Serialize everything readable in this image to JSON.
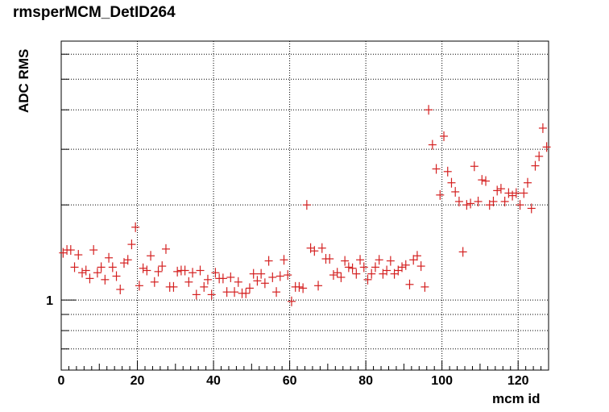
{
  "chart_data": {
    "type": "scatter",
    "title": "rmsperMCM_DetID264",
    "xlabel": "mcm id",
    "ylabel": "ADC RMS",
    "xlim": [
      0,
      128
    ],
    "xticks": [
      0,
      20,
      40,
      60,
      80,
      100,
      120
    ],
    "xtick_labels": [
      "0",
      "20",
      "40",
      "60",
      "80",
      "100",
      "120"
    ],
    "yscale": "log",
    "ylim": [
      0.6,
      6.6
    ],
    "yticks": [
      1
    ],
    "ytick_labels": [
      "1"
    ],
    "grid": true,
    "marker": "cross",
    "marker_color": "#d42020",
    "series": [
      {
        "x": [
          0,
          1,
          2,
          3,
          4,
          5,
          6,
          7,
          8,
          9,
          10,
          11,
          12,
          13,
          14,
          15,
          16,
          17,
          18,
          19,
          20,
          21,
          22,
          23,
          24,
          25,
          26,
          27,
          28,
          29,
          30,
          31,
          32,
          33,
          34,
          35,
          36,
          37,
          38,
          39,
          40,
          41,
          42,
          43,
          44,
          45,
          46,
          47,
          48,
          49,
          50,
          51,
          52,
          53,
          54,
          55,
          56,
          57,
          58,
          59,
          60,
          61,
          62,
          63,
          64,
          65,
          66,
          67,
          68,
          69,
          70,
          71,
          72,
          73,
          74,
          75,
          76,
          77,
          78,
          79,
          80,
          81,
          82,
          83,
          84,
          85,
          86,
          87,
          88,
          89,
          90,
          91,
          92,
          93,
          94,
          95,
          96,
          97,
          98,
          99,
          100,
          101,
          102,
          103,
          104,
          105,
          106,
          107,
          108,
          109,
          110,
          111,
          112,
          113,
          114,
          115,
          116,
          117,
          118,
          119,
          120,
          121,
          122,
          123,
          124,
          125,
          126,
          127
        ],
        "y": [
          1.41,
          1.44,
          1.44,
          1.27,
          1.39,
          1.22,
          1.24,
          1.17,
          1.44,
          1.22,
          1.27,
          1.16,
          1.36,
          1.27,
          1.19,
          1.08,
          1.31,
          1.34,
          1.5,
          1.7,
          1.11,
          1.26,
          1.24,
          1.38,
          1.14,
          1.23,
          1.28,
          1.45,
          1.1,
          1.1,
          1.23,
          1.24,
          1.24,
          1.14,
          1.22,
          1.04,
          1.24,
          1.1,
          1.16,
          1.04,
          1.22,
          1.17,
          1.17,
          1.06,
          1.18,
          1.06,
          1.14,
          1.05,
          1.05,
          1.09,
          1.21,
          1.15,
          1.21,
          1.13,
          1.33,
          1.18,
          1.06,
          1.19,
          1.34,
          1.2,
          0.99,
          1.1,
          1.1,
          1.09,
          2.0,
          1.46,
          1.43,
          1.11,
          1.46,
          1.35,
          1.35,
          1.2,
          1.22,
          1.18,
          1.33,
          1.27,
          1.26,
          1.21,
          1.34,
          1.27,
          1.16,
          1.21,
          1.27,
          1.34,
          1.21,
          1.24,
          1.33,
          1.21,
          1.24,
          1.27,
          1.29,
          1.12,
          1.34,
          1.38,
          1.28,
          1.1,
          4.0,
          3.1,
          2.6,
          2.15,
          3.3,
          2.55,
          2.35,
          2.2,
          2.05,
          1.42,
          2.0,
          2.02,
          2.65,
          2.05,
          2.4,
          2.38,
          2.0,
          2.05,
          2.22,
          2.25,
          2.05,
          2.18,
          2.14,
          2.18,
          2.0,
          2.18,
          2.35,
          1.95,
          2.66,
          2.85,
          3.5,
          3.05
        ]
      }
    ]
  }
}
